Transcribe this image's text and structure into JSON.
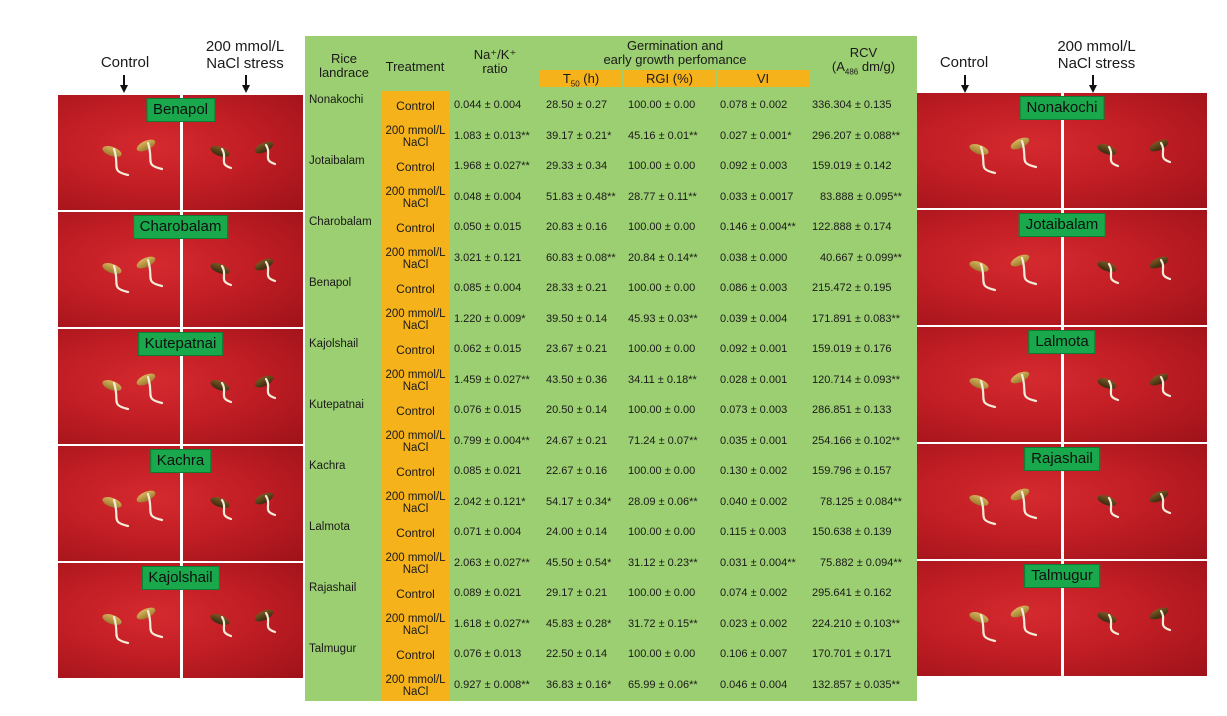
{
  "left_panel": {
    "col_control": "Control",
    "col_stress": "200 mmol/L\nNaCl stress",
    "photos": [
      "Benapol",
      "Charobalam",
      "Kutepatnai",
      "Kachra",
      "Kajolshail"
    ]
  },
  "right_panel": {
    "col_control": "Control",
    "col_stress": "200 mmol/L\nNaCl stress",
    "photos": [
      "Nonakochi",
      "Jotaibalam",
      "Lalmota",
      "Rajashail",
      "Talmugur"
    ]
  },
  "table": {
    "headers": {
      "landrace": "Rice\nlandrace",
      "treatment": "Treatment",
      "ratio": "Na⁺/K⁺\nratio",
      "germ_group": "Germination and\nearly growth perfomance",
      "t50_main": "T",
      "t50_sub": "50",
      "t50_unit": " (h)",
      "rgi": "RGI (%)",
      "vi": "VI",
      "rcv_main": "RCV",
      "rcv_unit_a": "(A",
      "rcv_unit_sub": "486",
      "rcv_unit_b": " dm/g)"
    },
    "rows": [
      {
        "landrace": "Nonakochi",
        "treatment": "Control",
        "ratio": "0.044 ± 0.004",
        "t50": "28.50 ± 0.27",
        "rgi": "100.00 ± 0.00",
        "vi": "0.078 ± 0.002",
        "rcv": "336.304 ± 0.135"
      },
      {
        "landrace": "",
        "treatment": "200 mmol/L\nNaCl",
        "ratio": "1.083 ± 0.013**",
        "t50": "39.17 ± 0.21*",
        "rgi": "45.16 ± 0.01**",
        "vi": "0.027 ± 0.001*",
        "rcv": "296.207 ± 0.088**"
      },
      {
        "landrace": "Jotaibalam",
        "treatment": "Control",
        "ratio": "1.968 ± 0.027**",
        "t50": "29.33 ± 0.34",
        "rgi": "100.00 ± 0.00",
        "vi": "0.092 ± 0.003",
        "rcv": "159.019 ± 0.142"
      },
      {
        "landrace": "",
        "treatment": "200 mmol/L\nNaCl",
        "ratio": "0.048 ± 0.004",
        "t50": "51.83 ± 0.48**",
        "rgi": "28.77 ± 0.11**",
        "vi": "0.033 ± 0.0017",
        "rcv": "83.888 ± 0.095**"
      },
      {
        "landrace": "Charobalam",
        "treatment": "Control",
        "ratio": "0.050 ± 0.015",
        "t50": "20.83 ± 0.16",
        "rgi": "100.00 ± 0.00",
        "vi": "0.146 ± 0.004**",
        "rcv": "122.888 ± 0.174"
      },
      {
        "landrace": "",
        "treatment": "200 mmol/L\nNaCl",
        "ratio": "3.021 ± 0.121",
        "t50": "60.83 ± 0.08**",
        "rgi": "20.84 ± 0.14**",
        "vi": "0.038 ± 0.000",
        "rcv": "40.667 ± 0.099**"
      },
      {
        "landrace": "Benapol",
        "treatment": "Control",
        "ratio": "0.085 ± 0.004",
        "t50": "28.33 ± 0.21",
        "rgi": "100.00 ± 0.00",
        "vi": "0.086 ± 0.003",
        "rcv": "215.472 ± 0.195"
      },
      {
        "landrace": "",
        "treatment": "200 mmol/L\nNaCl",
        "ratio": "1.220 ± 0.009*",
        "t50": "39.50 ± 0.14",
        "rgi": "45.93 ± 0.03**",
        "vi": "0.039 ± 0.004",
        "rcv": "171.891 ± 0.083**"
      },
      {
        "landrace": "Kajolshail",
        "treatment": "Control",
        "ratio": "0.062 ± 0.015",
        "t50": "23.67 ± 0.21",
        "rgi": "100.00 ± 0.00",
        "vi": "0.092 ± 0.001",
        "rcv": "159.019 ± 0.176"
      },
      {
        "landrace": "",
        "treatment": "200 mmol/L\nNaCl",
        "ratio": "1.459 ± 0.027**",
        "t50": "43.50 ± 0.36",
        "rgi": "34.11 ± 0.18**",
        "vi": "0.028 ± 0.001",
        "rcv": "120.714 ± 0.093**"
      },
      {
        "landrace": "Kutepatnai",
        "treatment": "Control",
        "ratio": "0.076 ± 0.015",
        "t50": "20.50 ± 0.14",
        "rgi": "100.00 ± 0.00",
        "vi": "0.073 ± 0.003",
        "rcv": "286.851 ± 0.133"
      },
      {
        "landrace": "",
        "treatment": "200 mmol/L\nNaCl",
        "ratio": "0.799 ± 0.004**",
        "t50": "24.67 ± 0.21",
        "rgi": "71.24 ± 0.07**",
        "vi": "0.035 ± 0.001",
        "rcv": "254.166 ± 0.102**"
      },
      {
        "landrace": "Kachra",
        "treatment": "Control",
        "ratio": "0.085 ± 0.021",
        "t50": "22.67 ± 0.16",
        "rgi": "100.00 ± 0.00",
        "vi": "0.130 ± 0.002",
        "rcv": "159.796 ± 0.157"
      },
      {
        "landrace": "",
        "treatment": "200 mmol/L\nNaCl",
        "ratio": "2.042 ± 0.121*",
        "t50": "54.17 ± 0.34*",
        "rgi": "28.09 ± 0.06**",
        "vi": "0.040 ± 0.002",
        "rcv": "78.125 ± 0.084**"
      },
      {
        "landrace": "Lalmota",
        "treatment": "Control",
        "ratio": "0.071 ± 0.004",
        "t50": "24.00 ± 0.14",
        "rgi": "100.00 ± 0.00",
        "vi": "0.115 ± 0.003",
        "rcv": "150.638 ± 0.139"
      },
      {
        "landrace": "",
        "treatment": "200 mmol/L\nNaCl",
        "ratio": "2.063 ± 0.027**",
        "t50": "45.50 ± 0.54*",
        "rgi": "31.12 ± 0.23**",
        "vi": "0.031 ± 0.004**",
        "rcv": "75.882 ± 0.094**"
      },
      {
        "landrace": "Rajashail",
        "treatment": "Control",
        "ratio": "0.089 ± 0.021",
        "t50": "29.17 ± 0.21",
        "rgi": "100.00 ± 0.00",
        "vi": "0.074 ± 0.002",
        "rcv": "295.641 ± 0.162"
      },
      {
        "landrace": "",
        "treatment": "200 mmol/L\nNaCl",
        "ratio": "1.618 ± 0.027**",
        "t50": "45.83 ± 0.28*",
        "rgi": "31.72 ± 0.15**",
        "vi": "0.023 ± 0.002",
        "rcv": "224.210 ± 0.103**"
      },
      {
        "landrace": "Talmugur",
        "treatment": "Control",
        "ratio": "0.076 ± 0.013",
        "t50": "22.50 ± 0.14",
        "rgi": "100.00 ± 0.00",
        "vi": "0.106 ± 0.007",
        "rcv": "170.701 ± 0.171"
      },
      {
        "landrace": "",
        "treatment": "200 mmol/L\nNaCl",
        "ratio": "0.927 ± 0.008**",
        "t50": "36.83 ± 0.16*",
        "rgi": "65.99 ± 0.06**",
        "vi": "0.046 ± 0.004",
        "rcv": "132.857 ± 0.035**"
      }
    ]
  },
  "colors": {
    "table_green": "#9cce72",
    "treatment_orange": "#f6b21a",
    "label_green": "#19a84b",
    "photo_red": "#c21e25"
  }
}
